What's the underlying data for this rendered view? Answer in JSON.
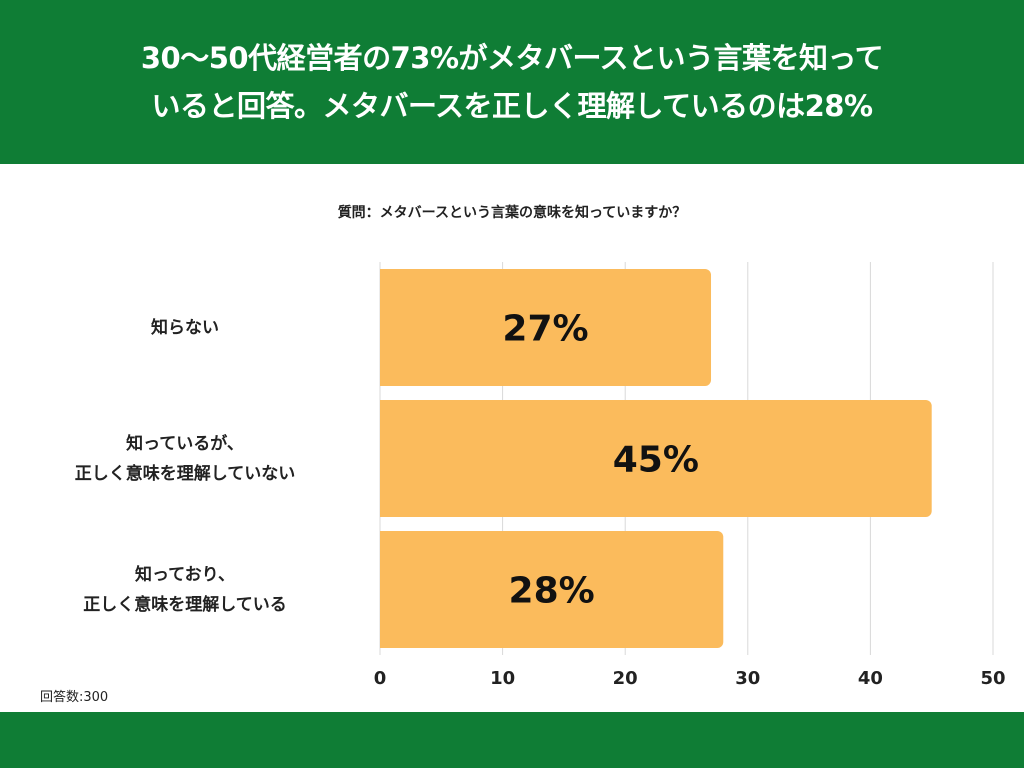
{
  "header": {
    "title_line1": "30〜50代経営者の73%がメタバースという言葉を知って",
    "title_line2": "いると回答。メタバースを正しく理解しているのは28%"
  },
  "question": "質問：メタバースという言葉の意味を知っていますか？",
  "sample_note": "回答数:300",
  "colors": {
    "brand": "#0f7d35",
    "bar": "#fbbb5c",
    "grid": "#d9d9d9"
  },
  "chart_data": {
    "type": "bar",
    "orientation": "horizontal",
    "categories": [
      {
        "lines": [
          "知らない"
        ]
      },
      {
        "lines": [
          "知っているが、",
          "正しく意味を理解していない"
        ]
      },
      {
        "lines": [
          "知っており、",
          "正しく意味を理解している"
        ]
      }
    ],
    "values": [
      27,
      45,
      28
    ],
    "value_labels": [
      "27%",
      "45%",
      "28%"
    ],
    "xlim": [
      0,
      50
    ],
    "xticks": [
      "0",
      "10",
      "20",
      "30",
      "40",
      "50"
    ],
    "grid": true
  }
}
